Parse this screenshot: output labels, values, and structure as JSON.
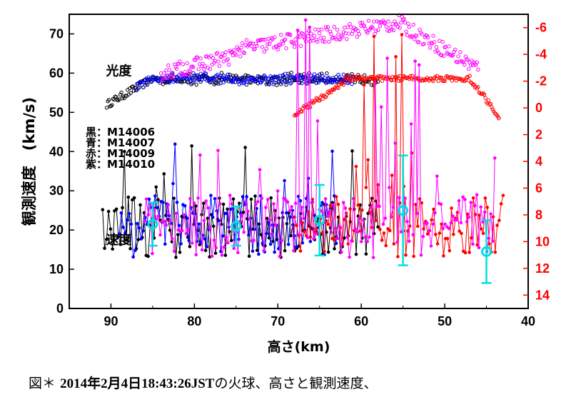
{
  "caption": {
    "prefix": "図＊",
    "date": "2014年2月4日18:43:26JST",
    "rest": "の火球、高さと観測速度、"
  },
  "chart_data": {
    "type": "scatter",
    "title": "",
    "xlabel": "高さ(km)",
    "ylabel": "観測速度　(km/s)",
    "y2label": "",
    "xlim": [
      95,
      40
    ],
    "ylim": [
      0,
      75
    ],
    "y2lim": [
      15,
      -7
    ],
    "xticks": [
      90,
      80,
      70,
      60,
      50,
      40
    ],
    "yticks": [
      0,
      10,
      20,
      30,
      40,
      50,
      60,
      70
    ],
    "y2ticks": [
      -6,
      -4,
      -2,
      0,
      2,
      4,
      6,
      8,
      10,
      12,
      14
    ],
    "annotations": [
      {
        "text": "光度",
        "x": 90.6,
        "y": 60.5
      },
      {
        "text": "速度",
        "x": 90.6,
        "y": 17.5
      }
    ],
    "legend": [
      {
        "color": "黒",
        "id": "M14006"
      },
      {
        "color": "青",
        "id": "M14007"
      },
      {
        "color": "赤",
        "id": "M14009"
      },
      {
        "color": "紫",
        "id": "M14010"
      }
    ],
    "series": [
      {
        "name": "M14006",
        "label": "黒",
        "color": "#000000",
        "axis": "left",
        "brightness_range": [
          90.5,
          58
        ],
        "speed_range": [
          91,
          58
        ]
      },
      {
        "name": "M14007",
        "label": "青",
        "color": "#0000ff",
        "axis": "left",
        "brightness_range": [
          87,
          61
        ],
        "speed_range": [
          89,
          63
        ]
      },
      {
        "name": "M14009",
        "label": "赤",
        "color": "#ff0000",
        "axis": "right",
        "brightness_range": [
          68,
          43.5
        ],
        "speed_range": [
          68,
          43
        ]
      },
      {
        "name": "M14010",
        "label": "紫",
        "color": "#ff00ff",
        "axis": "left",
        "brightness_range": [
          84,
          46
        ],
        "speed_range": [
          86,
          44
        ]
      }
    ],
    "mean_speed": {
      "color": "#00e0e0",
      "points": [
        {
          "x": 85,
          "y": 21.5,
          "err": 5.5
        },
        {
          "x": 75,
          "y": 21,
          "err": 5
        },
        {
          "x": 65,
          "y": 22.5,
          "err": 9
        },
        {
          "x": 55,
          "y": 25,
          "err": 14
        },
        {
          "x": 45,
          "y": 14.5,
          "err": 8
        }
      ]
    }
  }
}
